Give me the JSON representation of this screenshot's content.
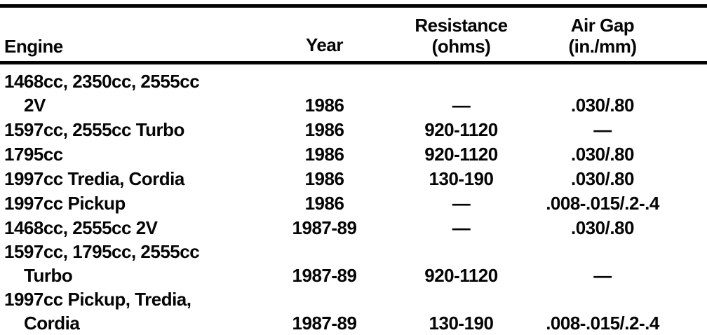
{
  "table": {
    "columns": {
      "engine": {
        "label": "Engine",
        "sub": ""
      },
      "year": {
        "label": "Year",
        "sub": ""
      },
      "resistance": {
        "label": "Resistance",
        "sub": "(ohms)"
      },
      "air_gap": {
        "label": "Air Gap",
        "sub": "(in./mm)"
      }
    },
    "rows": [
      {
        "engine_line1": "1468cc, 2350cc, 2555cc",
        "engine_line2": "2V",
        "year": "1986",
        "resistance": "—",
        "air_gap": ".030/.80"
      },
      {
        "engine_line1": "1597cc, 2555cc Turbo",
        "engine_line2": "",
        "year": "1986",
        "resistance": "920-1120",
        "air_gap": "—"
      },
      {
        "engine_line1": "1795cc",
        "engine_line2": "",
        "year": "1986",
        "resistance": "920-1120",
        "air_gap": ".030/.80"
      },
      {
        "engine_line1": "1997cc Tredia, Cordia",
        "engine_line2": "",
        "year": "1986",
        "resistance": "130-190",
        "air_gap": ".030/.80"
      },
      {
        "engine_line1": "1997cc Pickup",
        "engine_line2": "",
        "year": "1986",
        "resistance": "—",
        "air_gap": ".008-.015/.2-.4"
      },
      {
        "engine_line1": "1468cc, 2555cc 2V",
        "engine_line2": "",
        "year": "1987-89",
        "resistance": "—",
        "air_gap": ".030/.80"
      },
      {
        "engine_line1": "1597cc, 1795cc, 2555cc",
        "engine_line2": "Turbo",
        "year": "1987-89",
        "resistance": "920-1120",
        "air_gap": "—"
      },
      {
        "engine_line1": "1997cc Pickup, Tredia,",
        "engine_line2": "Cordia",
        "year": "1987-89",
        "resistance": "130-190",
        "air_gap": ".008-.015/.2-.4"
      }
    ],
    "colors": {
      "ink": "#050505",
      "paper": "#ffffff"
    }
  }
}
